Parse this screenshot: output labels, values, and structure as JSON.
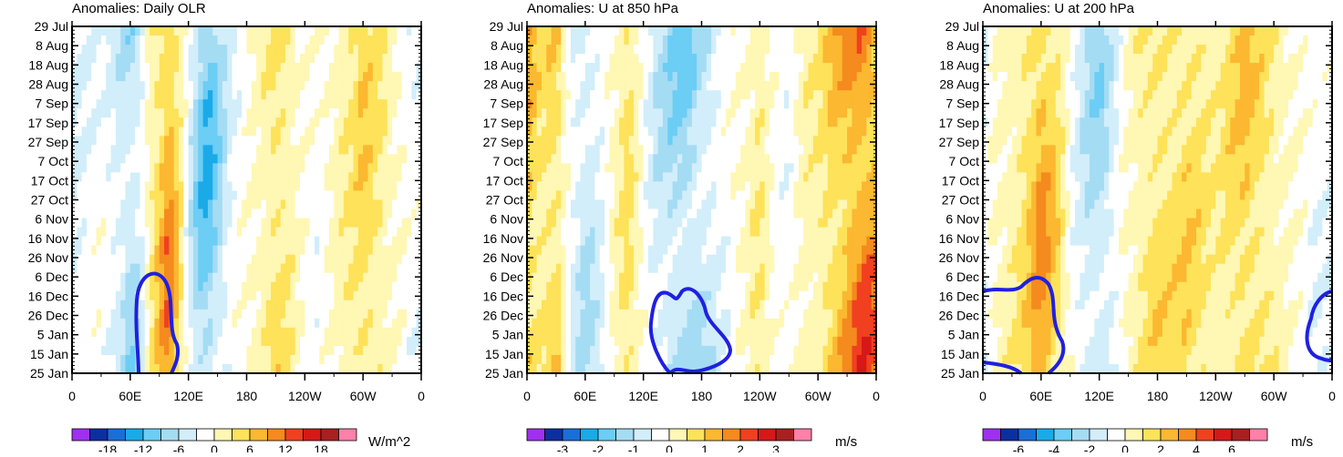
{
  "chart_data": [
    {
      "type": "heatmap",
      "title": "Anomalies: Daily OLR",
      "units": "W/m^2",
      "x_ticks": [
        "0",
        "60E",
        "120E",
        "180",
        "120W",
        "60W",
        "0"
      ],
      "y_ticks": [
        "29 Jul",
        "8 Aug",
        "18 Aug",
        "28 Aug",
        "7 Sep",
        "17 Sep",
        "27 Sep",
        "7 Oct",
        "17 Oct",
        "27 Oct",
        "6 Nov",
        "16 Nov",
        "26 Nov",
        "6 Dec",
        "16 Dec",
        "26 Dec",
        "5 Jan",
        "15 Jan",
        "25 Jan"
      ],
      "colorbar_labels": [
        "-18",
        "-12",
        "-6",
        "0",
        "6",
        "12",
        "18"
      ],
      "levels": [
        -21,
        -18,
        -15,
        -12,
        -9,
        -6,
        -3,
        0,
        3,
        6,
        9,
        12,
        15,
        18,
        21
      ],
      "columns": [
        {
          "lon": 0,
          "value": -4
        },
        {
          "lon": 15,
          "value": -3
        },
        {
          "lon": 30,
          "value": -2
        },
        {
          "lon": 45,
          "value": -5
        },
        {
          "lon": 60,
          "value": -9
        },
        {
          "lon": 70,
          "value": -6
        },
        {
          "lon": 80,
          "value": 2
        },
        {
          "lon": 90,
          "value": 7
        },
        {
          "lon": 100,
          "value": 12
        },
        {
          "lon": 110,
          "value": 5
        },
        {
          "lon": 120,
          "value": -4
        },
        {
          "lon": 130,
          "value": -10
        },
        {
          "lon": 140,
          "value": -13
        },
        {
          "lon": 150,
          "value": -9
        },
        {
          "lon": 165,
          "value": -3
        },
        {
          "lon": 180,
          "value": -1
        },
        {
          "lon": 195,
          "value": 2
        },
        {
          "lon": 210,
          "value": 5
        },
        {
          "lon": 225,
          "value": 3
        },
        {
          "lon": 240,
          "value": -1
        },
        {
          "lon": 255,
          "value": -2
        },
        {
          "lon": 270,
          "value": 1
        },
        {
          "lon": 285,
          "value": 3
        },
        {
          "lon": 300,
          "value": 6
        },
        {
          "lon": 315,
          "value": 4
        },
        {
          "lon": 330,
          "value": 1
        },
        {
          "lon": 345,
          "value": -2
        },
        {
          "lon": 360,
          "value": -3
        }
      ]
    },
    {
      "type": "heatmap",
      "title": "Anomalies: U at 850 hPa",
      "units": "m/s",
      "x_ticks": [
        "0",
        "60E",
        "120E",
        "180",
        "120W",
        "60W",
        "0"
      ],
      "y_ticks": [
        "29 Jul",
        "8 Aug",
        "18 Aug",
        "28 Aug",
        "7 Sep",
        "17 Sep",
        "27 Sep",
        "7 Oct",
        "17 Oct",
        "27 Oct",
        "6 Nov",
        "16 Nov",
        "26 Nov",
        "6 Dec",
        "16 Dec",
        "26 Dec",
        "5 Jan",
        "15 Jan",
        "25 Jan"
      ],
      "colorbar_labels": [
        "-3",
        "-2",
        "-1",
        "0",
        "1",
        "2",
        "3"
      ],
      "levels": [
        -3.5,
        -3,
        -2.5,
        -2,
        -1.5,
        -1,
        -0.5,
        0,
        0.5,
        1,
        1.5,
        2,
        2.5,
        3,
        3.5
      ],
      "columns": [
        {
          "lon": 0,
          "value": 1.4
        },
        {
          "lon": 15,
          "value": 0.7
        },
        {
          "lon": 30,
          "value": 1.1
        },
        {
          "lon": 45,
          "value": -0.6
        },
        {
          "lon": 60,
          "value": -1.2
        },
        {
          "lon": 75,
          "value": -0.7
        },
        {
          "lon": 90,
          "value": 0.2
        },
        {
          "lon": 105,
          "value": 0.8
        },
        {
          "lon": 120,
          "value": -0.2
        },
        {
          "lon": 135,
          "value": -1.0
        },
        {
          "lon": 150,
          "value": -1.5
        },
        {
          "lon": 165,
          "value": -1.7
        },
        {
          "lon": 180,
          "value": -1.3
        },
        {
          "lon": 195,
          "value": -0.7
        },
        {
          "lon": 210,
          "value": -0.3
        },
        {
          "lon": 225,
          "value": 0.1
        },
        {
          "lon": 240,
          "value": 0.6
        },
        {
          "lon": 255,
          "value": -0.2
        },
        {
          "lon": 270,
          "value": -0.4
        },
        {
          "lon": 285,
          "value": 0.3
        },
        {
          "lon": 300,
          "value": 0.5
        },
        {
          "lon": 315,
          "value": 1.2
        },
        {
          "lon": 330,
          "value": 1.8
        },
        {
          "lon": 345,
          "value": 2.4
        },
        {
          "lon": 360,
          "value": 1.9
        }
      ]
    },
    {
      "type": "heatmap",
      "title": "Anomalies: U at 200 hPa",
      "units": "m/s",
      "x_ticks": [
        "0",
        "60E",
        "120E",
        "180",
        "120W",
        "60W",
        "0"
      ],
      "y_ticks": [
        "29 Jul",
        "8 Aug",
        "18 Aug",
        "28 Aug",
        "7 Sep",
        "17 Sep",
        "27 Sep",
        "7 Oct",
        "17 Oct",
        "27 Oct",
        "6 Nov",
        "16 Nov",
        "26 Nov",
        "6 Dec",
        "16 Dec",
        "26 Dec",
        "5 Jan",
        "15 Jan",
        "25 Jan"
      ],
      "colorbar_labels": [
        "-6",
        "-4",
        "-2",
        "0",
        "2",
        "4",
        "6"
      ],
      "levels": [
        -7,
        -6,
        -5,
        -4,
        -3,
        -2,
        -1,
        0,
        1,
        2,
        3,
        4,
        5,
        6,
        7
      ],
      "columns": [
        {
          "lon": 0,
          "value": -1.2
        },
        {
          "lon": 15,
          "value": 0.3
        },
        {
          "lon": 30,
          "value": 0.8
        },
        {
          "lon": 45,
          "value": 1.8
        },
        {
          "lon": 60,
          "value": 3.5
        },
        {
          "lon": 75,
          "value": 2.0
        },
        {
          "lon": 90,
          "value": -0.5
        },
        {
          "lon": 105,
          "value": -2.0
        },
        {
          "lon": 120,
          "value": -3.0
        },
        {
          "lon": 135,
          "value": -1.5
        },
        {
          "lon": 150,
          "value": 0.3
        },
        {
          "lon": 165,
          "value": 1.2
        },
        {
          "lon": 180,
          "value": 1.8
        },
        {
          "lon": 195,
          "value": 1.5
        },
        {
          "lon": 210,
          "value": 2.0
        },
        {
          "lon": 225,
          "value": 1.4
        },
        {
          "lon": 240,
          "value": 0.8
        },
        {
          "lon": 255,
          "value": 1.6
        },
        {
          "lon": 270,
          "value": 2.4
        },
        {
          "lon": 285,
          "value": 1.7
        },
        {
          "lon": 300,
          "value": 0.9
        },
        {
          "lon": 315,
          "value": 0.2
        },
        {
          "lon": 330,
          "value": -0.4
        },
        {
          "lon": 345,
          "value": -1.1
        },
        {
          "lon": 360,
          "value": -0.8
        }
      ]
    }
  ],
  "palette": [
    "#a030f0",
    "#0c2fa0",
    "#1a6ed8",
    "#1aaae8",
    "#6ccdf5",
    "#a4dcf4",
    "#d2eefa",
    "#ffffff",
    "#fff7b4",
    "#fde25a",
    "#fbb830",
    "#f58a1e",
    "#f04020",
    "#d61818",
    "#a82020",
    "#ff80a8"
  ],
  "contour_color": "#2020e0"
}
